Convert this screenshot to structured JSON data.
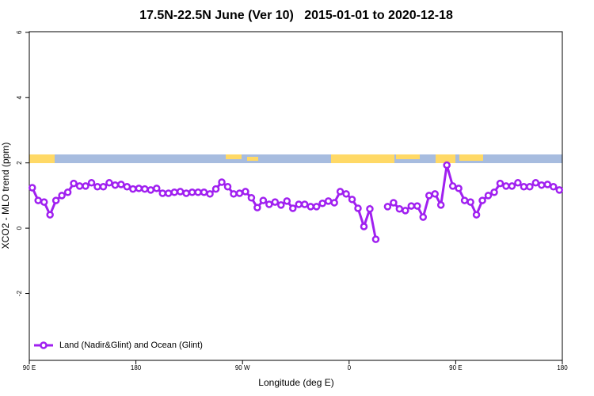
{
  "chart_data": {
    "type": "line",
    "title": "17.5N-22.5N June (Ver 10)   2015-01-01 to 2020-12-18",
    "x_label": "Longitude (deg E)",
    "y_label": "XCO2 - MLO trend (ppm)",
    "x": [
      92.5,
      97.5,
      102.5,
      107.5,
      112.5,
      117.5,
      122.5,
      127.5,
      132.5,
      137.5,
      142.5,
      147.5,
      152.5,
      157.5,
      162.5,
      167.5,
      172.5,
      177.5,
      182.5,
      187.5,
      192.5,
      197.5,
      202.5,
      207.5,
      212.5,
      217.5,
      222.5,
      227.5,
      232.5,
      237.5,
      242.5,
      247.5,
      252.5,
      257.5,
      262.5,
      267.5,
      272.5,
      277.5,
      282.5,
      287.5,
      292.5,
      297.5,
      302.5,
      307.5,
      312.5,
      317.5,
      322.5,
      327.5,
      332.5,
      337.5,
      342.5,
      347.5,
      352.5,
      357.5,
      362.5,
      367.5,
      372.5,
      377.5,
      382.5,
      387.5,
      392.5,
      397.5,
      402.5,
      407.5,
      412.5,
      417.5,
      422.5,
      427.5,
      432.5,
      437.5,
      442.5,
      447.5,
      452.5,
      457.5,
      462.5,
      467.5,
      472.5,
      477.5,
      482.5,
      487.5,
      492.5,
      497.5,
      502.5,
      507.5,
      512.5,
      517.5,
      522.5,
      527.5,
      532.5,
      537.5
    ],
    "series": [
      {
        "name": "Land (Nadir&Glint) and Ocean (Glint)",
        "color": "#a020f0",
        "values": [
          1.24,
          0.85,
          0.8,
          0.41,
          0.85,
          1.0,
          1.1,
          1.37,
          1.29,
          1.29,
          1.39,
          1.27,
          1.27,
          1.39,
          1.32,
          1.34,
          1.27,
          1.2,
          1.22,
          1.2,
          1.17,
          1.22,
          1.07,
          1.07,
          1.1,
          1.12,
          1.07,
          1.1,
          1.1,
          1.1,
          1.05,
          1.2,
          1.41,
          1.27,
          1.05,
          1.07,
          1.12,
          0.93,
          0.63,
          0.85,
          0.73,
          0.8,
          0.71,
          0.83,
          0.61,
          0.73,
          0.73,
          0.66,
          0.66,
          0.76,
          0.83,
          0.78,
          1.12,
          1.05,
          0.88,
          0.61,
          0.05,
          0.59,
          -0.34,
          null,
          0.66,
          0.78,
          0.59,
          0.54,
          0.68,
          0.68,
          0.34,
          1.0,
          1.05,
          0.71,
          1.93,
          1.29,
          1.22,
          0.85,
          0.8,
          0.41,
          0.85,
          1.0,
          1.1,
          1.37,
          1.29,
          1.29,
          1.39,
          1.27,
          1.27,
          1.39,
          1.32,
          1.34,
          1.27,
          1.17
        ]
      }
    ],
    "xlim": [
      90,
      540
    ],
    "xticks": [
      {
        "value": 90,
        "label": "90 E"
      },
      180,
      {
        "value": 270,
        "label": "90 W"
      },
      {
        "value": 360,
        "label": "0"
      },
      {
        "value": 450,
        "label": "90 E"
      },
      {
        "value": 540,
        "label": "180"
      }
    ],
    "ylim": [
      -4.05,
      6.02
    ],
    "yticks": [
      -2,
      0,
      2,
      4,
      6
    ],
    "legend": "bottom-left"
  }
}
